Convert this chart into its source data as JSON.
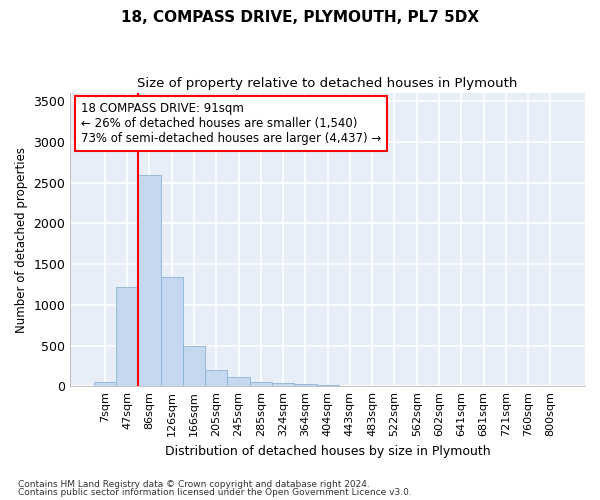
{
  "title1": "18, COMPASS DRIVE, PLYMOUTH, PL7 5DX",
  "title2": "Size of property relative to detached houses in Plymouth",
  "xlabel": "Distribution of detached houses by size in Plymouth",
  "ylabel": "Number of detached properties",
  "categories": [
    "7sqm",
    "47sqm",
    "86sqm",
    "126sqm",
    "166sqm",
    "205sqm",
    "245sqm",
    "285sqm",
    "324sqm",
    "364sqm",
    "404sqm",
    "443sqm",
    "483sqm",
    "522sqm",
    "562sqm",
    "602sqm",
    "641sqm",
    "681sqm",
    "721sqm",
    "760sqm",
    "800sqm"
  ],
  "bar_values": [
    50,
    1220,
    2590,
    1340,
    490,
    200,
    110,
    50,
    35,
    25,
    10,
    5,
    0,
    0,
    0,
    0,
    0,
    0,
    0,
    0,
    0
  ],
  "bar_color": "#c5d8f0",
  "bar_edge_color": "#8ab4d8",
  "background_color": "#e8eef8",
  "grid_color": "#ffffff",
  "ylim": [
    0,
    3600
  ],
  "yticks": [
    0,
    500,
    1000,
    1500,
    2000,
    2500,
    3000,
    3500
  ],
  "red_line_bar_index": 2,
  "annotation_text": "18 COMPASS DRIVE: 91sqm\n← 26% of detached houses are smaller (1,540)\n73% of semi-detached houses are larger (4,437) →",
  "footnote1": "Contains HM Land Registry data © Crown copyright and database right 2024.",
  "footnote2": "Contains public sector information licensed under the Open Government Licence v3.0."
}
